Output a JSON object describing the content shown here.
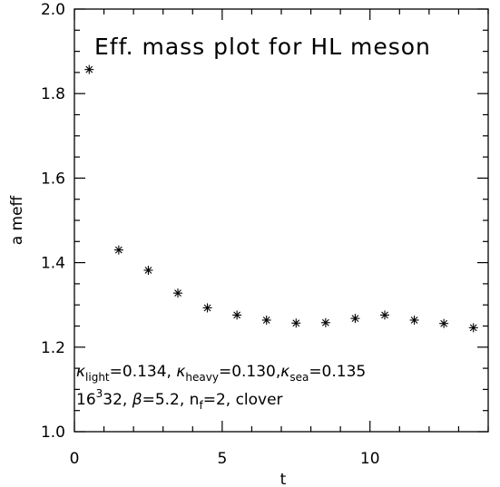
{
  "chart_data": {
    "type": "scatter",
    "title": "Eff. mass plot for HL meson",
    "xlabel": "t",
    "ylabel": "a meff",
    "xlim": [
      0,
      14
    ],
    "ylim": [
      1.0,
      2.0
    ],
    "x_ticks": [
      0,
      5,
      10
    ],
    "y_ticks": [
      1.0,
      1.2,
      1.4,
      1.6,
      1.8,
      2.0
    ],
    "x_tick_labels": [
      "0",
      "5",
      "10"
    ],
    "y_tick_labels": [
      "1.0",
      "1.2",
      "1.4",
      "1.6",
      "1.8",
      "2.0"
    ],
    "marker": "asterisk",
    "grid": false,
    "points": [
      {
        "x": 0.5,
        "y": 1.857
      },
      {
        "x": 1.5,
        "y": 1.43
      },
      {
        "x": 2.5,
        "y": 1.382
      },
      {
        "x": 3.5,
        "y": 1.328
      },
      {
        "x": 4.5,
        "y": 1.293
      },
      {
        "x": 5.5,
        "y": 1.276
      },
      {
        "x": 6.5,
        "y": 1.264
      },
      {
        "x": 7.5,
        "y": 1.257
      },
      {
        "x": 8.5,
        "y": 1.258
      },
      {
        "x": 9.5,
        "y": 1.268
      },
      {
        "x": 10.5,
        "y": 1.276
      },
      {
        "x": 11.5,
        "y": 1.264
      },
      {
        "x": 12.5,
        "y": 1.256
      },
      {
        "x": 13.5,
        "y": 1.246
      }
    ],
    "annotations": {
      "line1": {
        "kappa": "κ",
        "light_sub": "light",
        "light_val": "=0.134, ",
        "heavy_sub": "heavy",
        "heavy_val": "=0.130,",
        "sea_sub": "sea",
        "sea_val": "=0.135"
      },
      "line2": {
        "lattice_base": "16",
        "lattice_sup": "3",
        "lattice_rest": "32, ",
        "beta": "β",
        "beta_val": "=5.2, n",
        "nf_sub": "f",
        "nf_val": "=2, clover"
      }
    }
  }
}
